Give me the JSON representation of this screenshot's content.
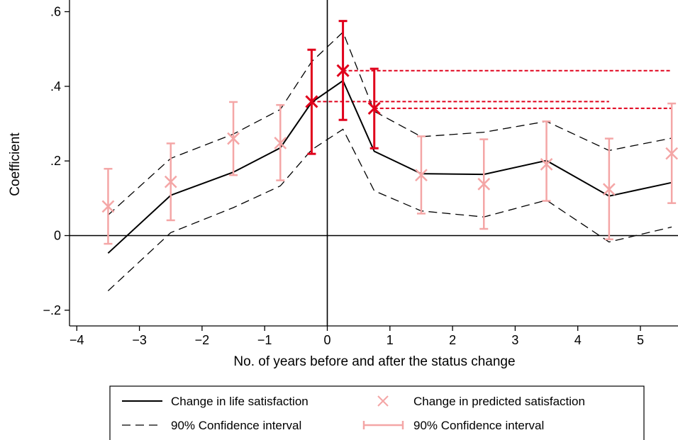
{
  "chart_data": {
    "type": "line",
    "title": "",
    "xlabel": "No. of years before and after the status change",
    "ylabel": "Coefficient",
    "xlim": [
      -4.2,
      5.7
    ],
    "ylim": [
      -0.225,
      0.62
    ],
    "xticks": [
      -4,
      -3,
      -2,
      -1,
      0,
      1,
      2,
      3,
      4,
      5
    ],
    "xtick_labels": [
      "−4",
      "−3",
      "−2",
      "−1",
      "0",
      "1",
      "2",
      "3",
      "4",
      "5"
    ],
    "yticks": [
      -0.2,
      0,
      0.2,
      0.4,
      0.6
    ],
    "ytick_labels": [
      "−.2",
      "0",
      ".2",
      ".4",
      ".6"
    ],
    "grid": false,
    "reference_lines": {
      "x": 0,
      "y": 0
    },
    "colors": {
      "line": "#000000",
      "predicted": "#f4a6a6",
      "highlight": "#e0001b"
    },
    "life_satisfaction": {
      "legend_label": "Change in life satisfaction",
      "x": [
        -3.5,
        -2.5,
        -1.5,
        -0.75,
        -0.25,
        0.25,
        0.75,
        1.5,
        2.5,
        3.5,
        4.5,
        5.5
      ],
      "y": [
        -0.047,
        0.108,
        0.17,
        0.235,
        0.357,
        0.415,
        0.226,
        0.166,
        0.164,
        0.201,
        0.106,
        0.142
      ],
      "ci_label": "90% Confidence interval",
      "ci_low": [
        -0.148,
        0.008,
        0.075,
        0.133,
        0.23,
        0.285,
        0.12,
        0.066,
        0.05,
        0.095,
        -0.017,
        0.023
      ],
      "ci_high": [
        0.055,
        0.207,
        0.272,
        0.338,
        0.466,
        0.545,
        0.333,
        0.265,
        0.277,
        0.306,
        0.228,
        0.261
      ]
    },
    "predicted_satisfaction": {
      "legend_label": "Change in predicted satisfaction",
      "ci_label": "90% Confidence interval",
      "x": [
        -3.5,
        -2.5,
        -1.5,
        -0.75,
        -0.25,
        0.25,
        0.75,
        1.5,
        2.5,
        3.5,
        4.5,
        5.5
      ],
      "y": [
        0.078,
        0.144,
        0.26,
        0.248,
        0.359,
        0.442,
        0.341,
        0.162,
        0.138,
        0.191,
        0.124,
        0.22
      ],
      "ci_low": [
        -0.022,
        0.041,
        0.162,
        0.148,
        0.219,
        0.31,
        0.234,
        0.059,
        0.018,
        0.093,
        -0.01,
        0.087
      ],
      "ci_high": [
        0.179,
        0.247,
        0.358,
        0.35,
        0.498,
        0.575,
        0.447,
        0.266,
        0.258,
        0.306,
        0.26,
        0.354
      ],
      "highlighted_x": [
        -0.25,
        0.25,
        0.75
      ]
    },
    "reference_dotted_levels": [
      {
        "y": 0.442,
        "x_from": 0.25,
        "x_to": 5.5
      },
      {
        "y": 0.359,
        "x_from": -0.25,
        "x_to": 4.5
      },
      {
        "y": 0.341,
        "x_from": 0.75,
        "x_to": 5.5
      }
    ],
    "legend": {
      "position": "bottom",
      "entries": [
        {
          "label": "Change in life satisfaction",
          "style": "solid-line"
        },
        {
          "label": "Change in predicted satisfaction",
          "style": "cross-marker"
        },
        {
          "label": "90% Confidence interval",
          "style": "dashed-line"
        },
        {
          "label": "90% Confidence interval",
          "style": "error-bar"
        }
      ]
    }
  }
}
